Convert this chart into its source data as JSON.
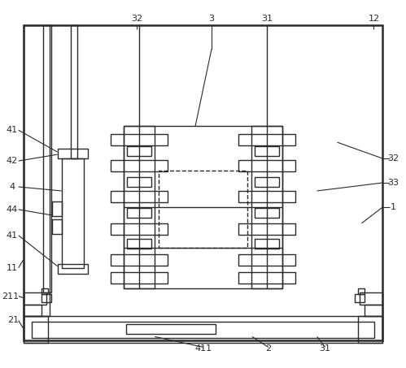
{
  "background": "#ffffff",
  "line_color": "#2a2a2a",
  "lw": 1.0,
  "lw2": 1.8,
  "fig_w": 4.99,
  "fig_h": 4.53
}
